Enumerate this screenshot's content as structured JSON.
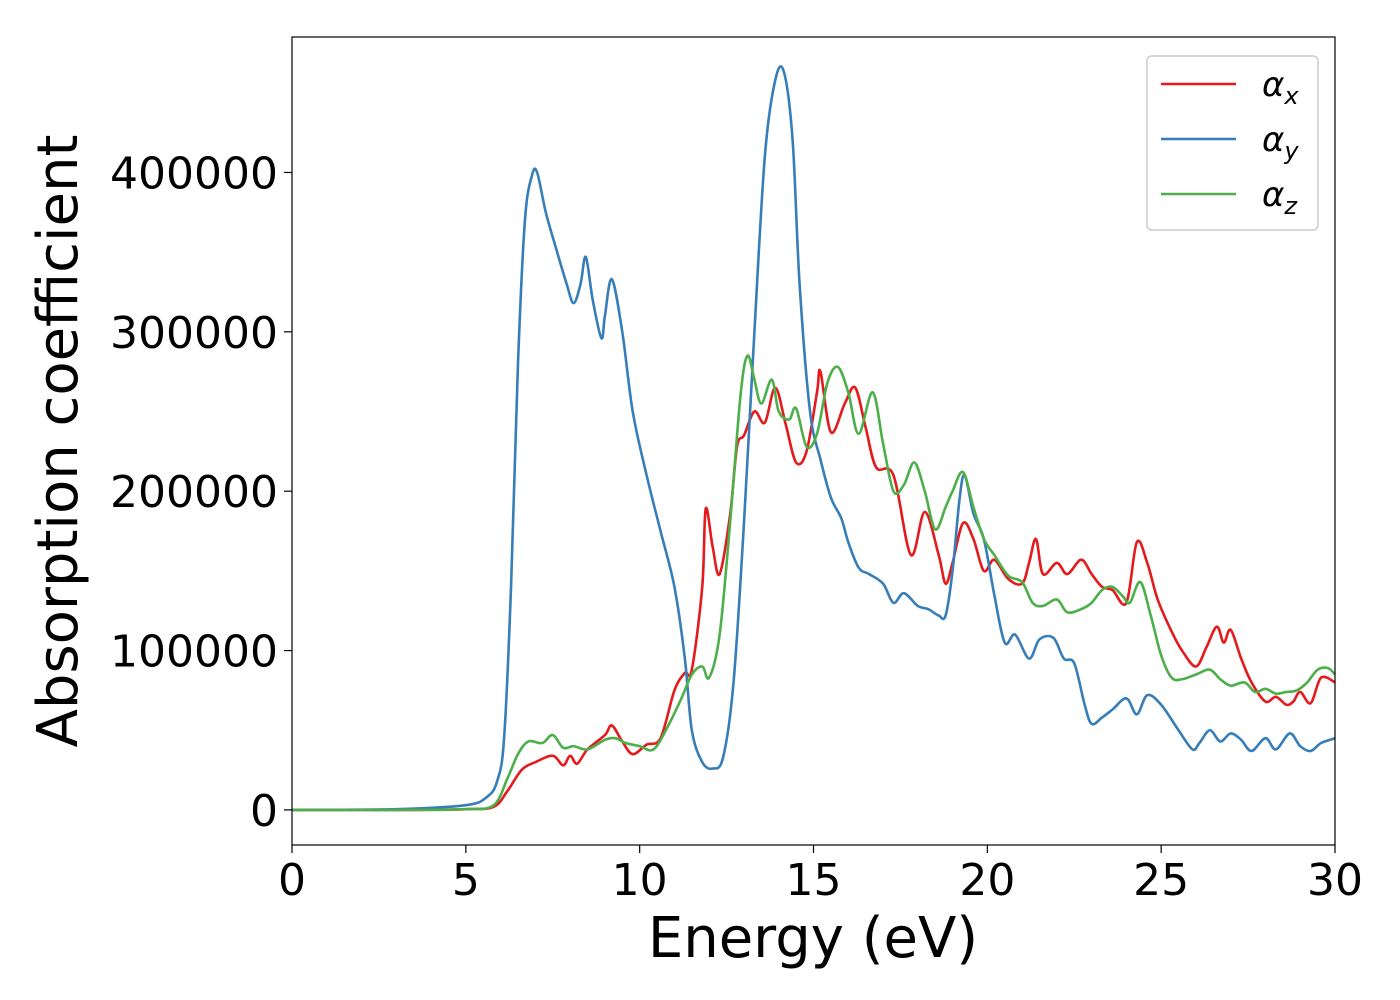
{
  "chart_data": {
    "type": "line",
    "title": "",
    "xlabel": "Energy (eV)",
    "ylabel": "Absorption coefficient",
    "xlim": [
      0,
      30
    ],
    "ylim": [
      -22000,
      485000
    ],
    "xticks": [
      0,
      5,
      10,
      15,
      20,
      25,
      30
    ],
    "yticks": [
      0,
      100000,
      200000,
      300000,
      400000
    ],
    "grid": false,
    "legend_position": "top-right",
    "series": [
      {
        "name": "α",
        "sub": "x",
        "color": "#e41a1c",
        "x": [
          0,
          3,
          5,
          5.8,
          6.2,
          6.6,
          7.0,
          7.5,
          7.8,
          8.0,
          8.2,
          8.5,
          9.0,
          9.2,
          9.5,
          9.8,
          10.2,
          10.6,
          11.0,
          11.3,
          11.5,
          11.8,
          11.9,
          12.1,
          12.3,
          12.6,
          12.8,
          13.0,
          13.3,
          13.6,
          13.9,
          14.2,
          14.5,
          14.8,
          15.1,
          15.2,
          15.5,
          15.9,
          16.2,
          16.5,
          16.8,
          17.3,
          17.8,
          18.2,
          18.6,
          18.8,
          19.0,
          19.3,
          19.6,
          19.9,
          20.2,
          20.6,
          21.0,
          21.2,
          21.4,
          21.6,
          22.0,
          22.3,
          22.7,
          23.0,
          23.3,
          23.6,
          24.0,
          24.3,
          24.6,
          24.9,
          25.3,
          25.6,
          26.0,
          26.3,
          26.6,
          26.8,
          27.0,
          27.3,
          27.6,
          28.0,
          28.3,
          28.6,
          28.8,
          29.0,
          29.3,
          29.6,
          30.0
        ],
        "y": [
          0,
          0,
          500,
          2000,
          12000,
          25000,
          30000,
          34000,
          28000,
          34000,
          29000,
          38000,
          47000,
          53000,
          43000,
          35000,
          41000,
          45000,
          75000,
          86000,
          88000,
          140000,
          189000,
          165000,
          148000,
          185000,
          228000,
          235000,
          250000,
          243000,
          265000,
          242000,
          218000,
          225000,
          262000,
          275000,
          237000,
          255000,
          265000,
          240000,
          215000,
          210000,
          160000,
          187000,
          160000,
          142000,
          155000,
          180000,
          170000,
          150000,
          157000,
          145000,
          142000,
          155000,
          170000,
          148000,
          155000,
          148000,
          157000,
          148000,
          140000,
          138000,
          130000,
          168000,
          155000,
          132000,
          112000,
          100000,
          90000,
          102000,
          115000,
          105000,
          113000,
          95000,
          80000,
          68000,
          71000,
          66000,
          68000,
          74000,
          67000,
          83000,
          80000
        ]
      },
      {
        "name": "α",
        "sub": "y",
        "color": "#377eb8",
        "x": [
          0,
          3,
          5,
          5.6,
          5.9,
          6.1,
          6.3,
          6.5,
          6.7,
          6.9,
          7.05,
          7.3,
          7.6,
          7.9,
          8.1,
          8.3,
          8.45,
          8.65,
          8.9,
          9.0,
          9.2,
          9.5,
          9.8,
          10.2,
          10.6,
          11.0,
          11.3,
          11.5,
          11.8,
          12.1,
          12.4,
          12.7,
          13.0,
          13.3,
          13.6,
          13.9,
          14.15,
          14.4,
          14.6,
          14.9,
          15.2,
          15.5,
          15.8,
          16.0,
          16.3,
          16.6,
          17.0,
          17.3,
          17.6,
          18.0,
          18.3,
          18.6,
          18.8,
          19.0,
          19.2,
          19.35,
          19.6,
          19.9,
          20.2,
          20.5,
          20.8,
          21.2,
          21.5,
          21.9,
          22.2,
          22.5,
          22.8,
          23.0,
          23.3,
          23.6,
          24.0,
          24.3,
          24.6,
          25.0,
          25.5,
          25.9,
          26.1,
          26.4,
          26.7,
          27.0,
          27.3,
          27.6,
          28.0,
          28.3,
          28.7,
          29.0,
          29.3,
          29.6,
          30.0
        ],
        "y": [
          0,
          500,
          3000,
          8000,
          18000,
          45000,
          140000,
          280000,
          370000,
          398000,
          400000,
          375000,
          352000,
          330000,
          318000,
          330000,
          347000,
          320000,
          296000,
          310000,
          333000,
          300000,
          250000,
          210000,
          175000,
          140000,
          95000,
          50000,
          30000,
          26000,
          33000,
          80000,
          180000,
          300000,
          410000,
          458000,
          463000,
          420000,
          330000,
          250000,
          220000,
          196000,
          183000,
          168000,
          152000,
          148000,
          142000,
          130000,
          136000,
          128000,
          126000,
          122000,
          122000,
          150000,
          195000,
          210000,
          186000,
          170000,
          135000,
          105000,
          110000,
          95000,
          107000,
          108000,
          95000,
          92000,
          66000,
          54000,
          58000,
          63000,
          70000,
          60000,
          72000,
          66000,
          50000,
          38000,
          42000,
          50000,
          43000,
          48000,
          44000,
          37000,
          45000,
          38000,
          48000,
          40000,
          37000,
          42000,
          45000
        ]
      },
      {
        "name": "α",
        "sub": "z",
        "color": "#4daf4a",
        "x": [
          0,
          3,
          5,
          5.8,
          6.2,
          6.5,
          6.8,
          7.2,
          7.5,
          7.8,
          8.1,
          8.5,
          9.0,
          9.3,
          9.6,
          10.0,
          10.4,
          10.8,
          11.2,
          11.5,
          11.8,
          12.0,
          12.3,
          12.6,
          12.9,
          13.1,
          13.3,
          13.5,
          13.8,
          14.0,
          14.3,
          14.5,
          14.8,
          15.1,
          15.4,
          15.7,
          16.0,
          16.3,
          16.7,
          17.0,
          17.3,
          17.6,
          17.9,
          18.2,
          18.5,
          18.8,
          19.0,
          19.3,
          19.6,
          19.9,
          20.2,
          20.6,
          21.0,
          21.3,
          21.6,
          22.0,
          22.3,
          22.7,
          23.0,
          23.3,
          23.6,
          23.9,
          24.1,
          24.4,
          24.7,
          25.0,
          25.3,
          25.6,
          26.0,
          26.4,
          26.7,
          27.0,
          27.4,
          27.7,
          28.0,
          28.3,
          28.6,
          28.9,
          29.2,
          29.5,
          29.8,
          30.0
        ],
        "y": [
          0,
          0,
          500,
          3000,
          20000,
          35000,
          43000,
          42000,
          47000,
          39000,
          40000,
          38000,
          44000,
          45000,
          42000,
          40000,
          38000,
          52000,
          70000,
          85000,
          90000,
          83000,
          110000,
          180000,
          260000,
          285000,
          270000,
          255000,
          270000,
          250000,
          245000,
          252000,
          228000,
          236000,
          268000,
          278000,
          262000,
          236000,
          262000,
          230000,
          200000,
          204000,
          218000,
          200000,
          176000,
          190000,
          200000,
          212000,
          190000,
          170000,
          160000,
          147000,
          143000,
          130000,
          128000,
          132000,
          124000,
          126000,
          130000,
          138000,
          140000,
          134000,
          130000,
          143000,
          122000,
          97000,
          83000,
          82000,
          85000,
          88000,
          82000,
          78000,
          80000,
          74000,
          76000,
          73000,
          74000,
          75000,
          80000,
          88000,
          89000,
          85000
        ]
      }
    ]
  }
}
